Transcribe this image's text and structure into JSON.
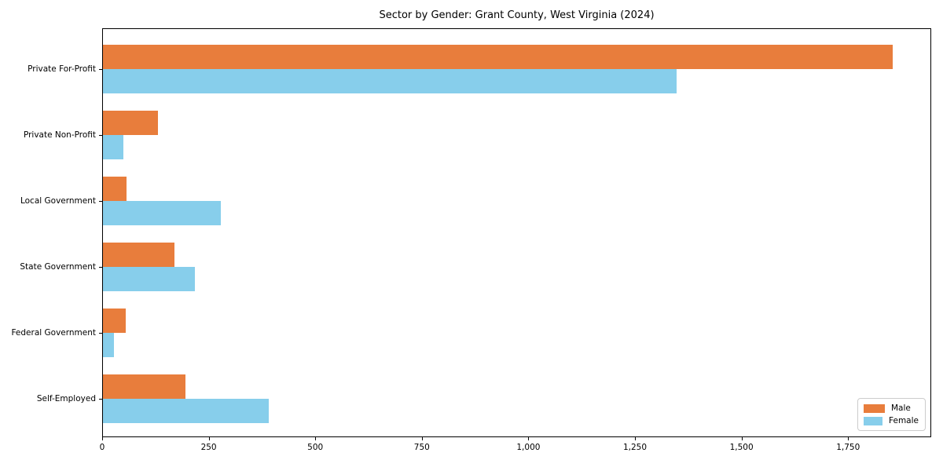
{
  "chart_data": {
    "type": "bar",
    "orientation": "horizontal",
    "title": "Sector by Gender: Grant County, West Virginia (2024)",
    "categories": [
      "Private For-Profit",
      "Private Non-Profit",
      "Local Government",
      "State Government",
      "Federal Government",
      "Self-Employed"
    ],
    "series": [
      {
        "name": "Male",
        "color": "#e87d3c",
        "values": [
          1855,
          131,
          58,
          169,
          55,
          195
        ]
      },
      {
        "name": "Female",
        "color": "#87ceeb",
        "values": [
          1348,
          50,
          278,
          218,
          28,
          390
        ]
      }
    ],
    "xlabel": "",
    "ylabel": "",
    "xlim": [
      0,
      1945
    ],
    "xticks": [
      0,
      250,
      500,
      750,
      1000,
      1250,
      1500,
      1750
    ],
    "xtick_labels": [
      "0",
      "250",
      "500",
      "750",
      "1,000",
      "1,250",
      "1,500",
      "1,750"
    ],
    "grid": false,
    "legend": {
      "position": "lower right",
      "entries": [
        "Male",
        "Female"
      ]
    }
  }
}
